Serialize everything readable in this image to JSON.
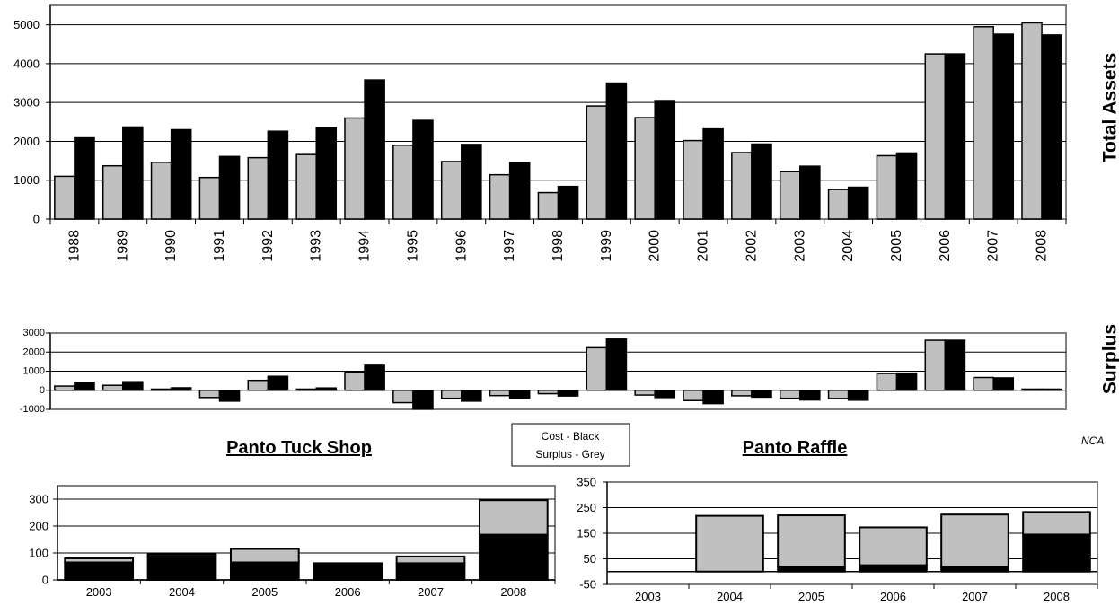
{
  "chart_data": [
    {
      "type": "bar",
      "ylabel": "Total Assets",
      "ylim": [
        0,
        5500
      ],
      "yticks": [
        0,
        1000,
        2000,
        3000,
        4000,
        5000
      ],
      "grid": true,
      "categories": [
        "1988",
        "1989",
        "1990",
        "1991",
        "1992",
        "1993",
        "1994",
        "1995",
        "1996",
        "1997",
        "1998",
        "1999",
        "2000",
        "2001",
        "2002",
        "2003",
        "2004",
        "2005",
        "2006",
        "2007",
        "2008"
      ],
      "series": [
        {
          "color": "#c0c0c0",
          "values": [
            1100,
            1370,
            1460,
            1070,
            1580,
            1660,
            2600,
            1900,
            1480,
            1140,
            680,
            2910,
            2610,
            2020,
            1710,
            1220,
            760,
            1630,
            4250,
            4950,
            5050
          ]
        },
        {
          "color": "#000000",
          "values": [
            2090,
            2370,
            2300,
            1610,
            2260,
            2350,
            3580,
            2540,
            1920,
            1450,
            840,
            3500,
            3050,
            2320,
            1930,
            1360,
            820,
            1700,
            4250,
            4760,
            4740
          ]
        }
      ]
    },
    {
      "type": "bar",
      "ylabel": "Surplus",
      "ylim": [
        -1000,
        3000
      ],
      "yticks": [
        -1000,
        0,
        1000,
        2000,
        3000
      ],
      "grid": true,
      "series": [
        {
          "color": "#c0c0c0",
          "values": [
            220,
            260,
            60,
            -380,
            520,
            60,
            950,
            -650,
            -420,
            -280,
            -180,
            2230,
            -250,
            -540,
            -290,
            -420,
            -430,
            880,
            2620,
            670,
            60
          ]
        },
        {
          "color": "#000000",
          "values": [
            420,
            450,
            130,
            -570,
            730,
            120,
            1310,
            -980,
            -570,
            -420,
            -300,
            2680,
            -380,
            -700,
            -360,
            -510,
            -520,
            900,
            2620,
            650,
            60
          ]
        }
      ]
    },
    {
      "type": "bar",
      "title": "Panto Tuck Shop",
      "ylim": [
        0,
        350
      ],
      "yticks": [
        0,
        100,
        200,
        300
      ],
      "grid": true,
      "stacked": true,
      "categories": [
        "2003",
        "2004",
        "2005",
        "2006",
        "2007",
        "2008"
      ],
      "series": [
        {
          "color": "#000000",
          "values": [
            65,
            88,
            65,
            62,
            62,
            168
          ]
        },
        {
          "color": "#c0c0c0",
          "values": [
            15,
            7,
            50,
            0,
            25,
            128
          ]
        }
      ]
    },
    {
      "type": "bar",
      "title": "Panto Raffle",
      "ylim": [
        -50,
        350
      ],
      "yticks": [
        -50,
        50,
        150,
        250,
        350
      ],
      "grid": true,
      "stacked": true,
      "categories": [
        "2003",
        "2004",
        "2005",
        "2006",
        "2007",
        "2008"
      ],
      "series": [
        {
          "color": "#000000",
          "values": [
            0,
            0,
            20,
            25,
            18,
            145
          ]
        },
        {
          "color": "#c0c0c0",
          "values": [
            0,
            218,
            200,
            148,
            205,
            88
          ]
        }
      ]
    }
  ],
  "legend": {
    "line1": "Cost - Black",
    "line2": "Surplus - Grey"
  },
  "credit": "NCA"
}
